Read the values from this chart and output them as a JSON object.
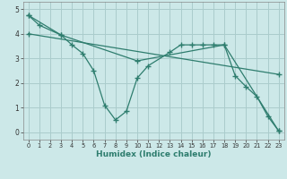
{
  "xlabel": "Humidex (Indice chaleur)",
  "ylabel": "",
  "bg_color": "#cce8e8",
  "grid_color": "#aacccc",
  "line_color": "#2e7d6e",
  "marker": "+",
  "markersize": 4,
  "linewidth": 0.9,
  "series": [
    {
      "x": [
        0,
        1,
        3,
        4,
        5,
        6,
        7,
        8,
        9,
        10,
        11,
        13,
        14,
        15,
        16,
        17,
        18,
        19,
        20,
        21,
        22,
        23
      ],
      "y": [
        4.75,
        4.35,
        3.95,
        3.55,
        3.2,
        2.5,
        1.1,
        0.5,
        0.85,
        2.2,
        2.7,
        3.25,
        3.55,
        3.55,
        3.55,
        3.55,
        3.55,
        2.3,
        1.85,
        1.45,
        0.65,
        0.05
      ]
    },
    {
      "x": [
        0,
        3,
        10,
        18,
        23
      ],
      "y": [
        4.75,
        3.95,
        2.9,
        3.55,
        0.05
      ]
    },
    {
      "x": [
        0,
        23
      ],
      "y": [
        4.0,
        2.35
      ]
    }
  ],
  "xlim": [
    -0.5,
    23.5
  ],
  "ylim": [
    -0.3,
    5.3
  ],
  "xticks": [
    0,
    1,
    2,
    3,
    4,
    5,
    6,
    7,
    8,
    9,
    10,
    11,
    12,
    13,
    14,
    15,
    16,
    17,
    18,
    19,
    20,
    21,
    22,
    23
  ],
  "yticks": [
    0,
    1,
    2,
    3,
    4,
    5
  ]
}
